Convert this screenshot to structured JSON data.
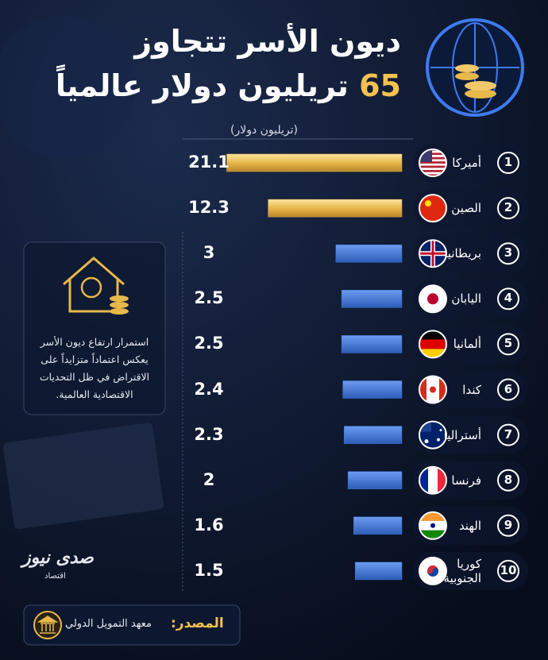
{
  "chart_data": {
    "type": "bar",
    "title": "ديون الأسر تتجاوز",
    "title_number": "65",
    "title_rest": "تريليون دولار عالمياً",
    "unit": "(تريليون دولار)",
    "ranks": [
      1,
      2,
      3,
      4,
      5,
      6,
      7,
      8,
      9,
      10
    ],
    "categories": [
      "أميركا",
      "الصين",
      "بريطانيا",
      "اليابان",
      "ألمانيا",
      "كندا",
      "أستراليا",
      "فرنسا",
      "الهند",
      "كوريا الجنوبية"
    ],
    "values": [
      21.1,
      12.3,
      3,
      2.5,
      2.5,
      2.4,
      2.3,
      2,
      1.6,
      1.5
    ],
    "colors": [
      "#e8b84a",
      "#e8b84a",
      "#3f76d6",
      "#3f76d6",
      "#3f76d6",
      "#3f76d6",
      "#3f76d6",
      "#3f76d6",
      "#3f76d6",
      "#3f76d6"
    ],
    "note": "استمرار ارتفاع ديون الأسر يعكس اعتماداً متزايداً على الاقتراض في ظل التحديات الاقتصادية العالمية.",
    "source_label": "المصدر:",
    "source": "معهد التمويل الدولي",
    "watermark": "صدى نيوز",
    "watermark_sub": "اقتصاد"
  }
}
